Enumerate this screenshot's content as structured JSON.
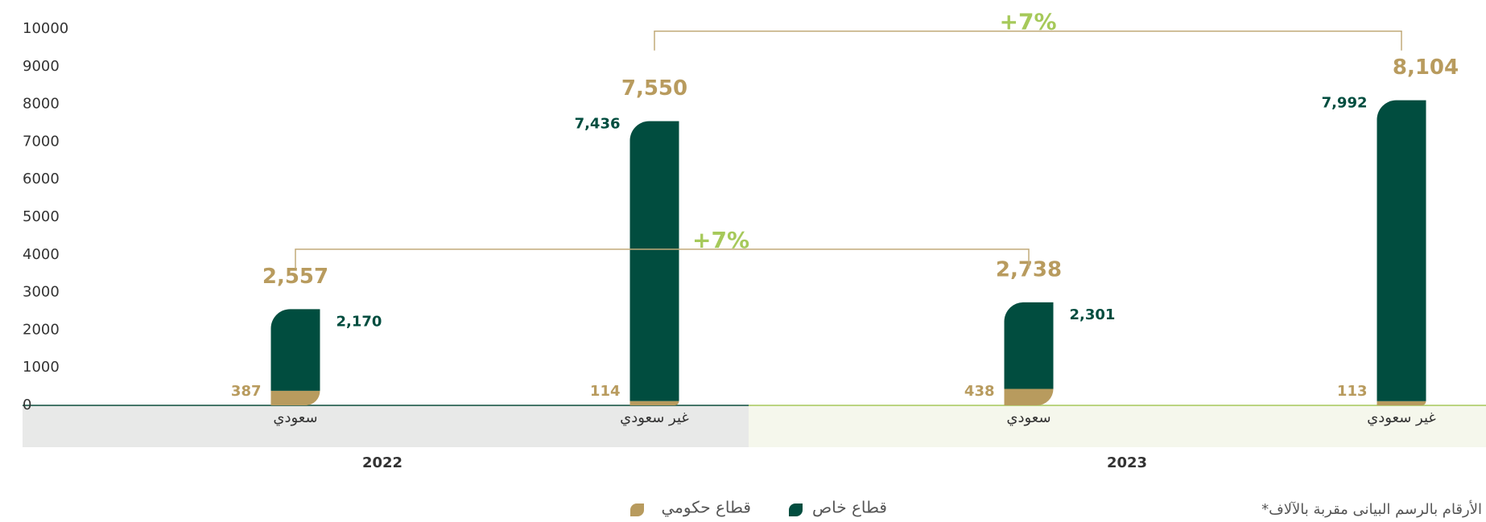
{
  "chart_data": {
    "type": "stacked_bar",
    "groups": [
      "2022",
      "2023"
    ],
    "categories": [
      "سعودي",
      "غير سعودي",
      "سعودي",
      "غير سعودي"
    ],
    "series": [
      {
        "name": "قطاع حكومي",
        "color": "#b89b5e",
        "values": [
          387,
          114,
          438,
          113
        ],
        "value_labels": [
          "387",
          "114",
          "438",
          "113"
        ]
      },
      {
        "name": "قطاع خاص",
        "color": "#014d3f",
        "values": [
          2170,
          7436,
          2301,
          7992
        ],
        "value_labels": [
          "2,170",
          "7,436",
          "2,301",
          "7,992"
        ]
      }
    ],
    "totals": [
      2557,
      7550,
      2738,
      8104
    ],
    "total_labels": [
      "2,557",
      "7,550",
      "2,738",
      "8,104"
    ],
    "annotations": [
      "+7%",
      "+7%"
    ],
    "ylim": [
      0,
      10000
    ],
    "yticks": [
      0,
      1000,
      2000,
      3000,
      4000,
      5000,
      6000,
      7000,
      8000,
      9000,
      10000
    ],
    "note": "*الأرقام بالرسم البيانى مقربة بالآلاف"
  }
}
